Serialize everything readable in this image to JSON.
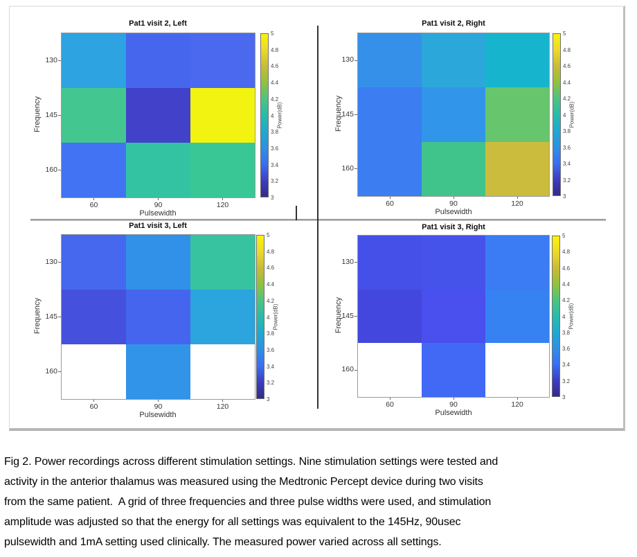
{
  "figure": {
    "caption_lines": [
      "Fig 2. Power recordings across different stimulation settings. Nine stimulation settings were tested and",
      "activity in the anterior thalamus was measured using the Medtronic Percept device during two visits",
      "from the same patient.  A grid of three frequencies and three pulse widths were used, and stimulation",
      "amplitude was adjusted so that the energy for all settings was equivalent to the 145Hz, 90usec",
      "pulsewidth and 1mA setting used clinically. The measured power varied across all settings."
    ]
  },
  "chart_data": {
    "type": "heatmap",
    "x_categories": [
      "60",
      "90",
      "120"
    ],
    "y_categories": [
      "130",
      "145",
      "160"
    ],
    "xlabel": "Pulsewidth",
    "ylabel": "Frequency",
    "colorbar": {
      "label": "Power(dB)",
      "min": 3,
      "max": 5,
      "tick_labels": [
        "5",
        "4.8",
        "4.6",
        "4.4",
        "4.2",
        "4",
        "3.8",
        "3.6",
        "3.4",
        "3.2",
        "3"
      ],
      "gradient_stops_bottom_to_top": [
        "#352a87",
        "#3d3ec1",
        "#3a6ff2",
        "#2e90e5",
        "#1fa9d1",
        "#27bcab",
        "#4cc481",
        "#90c13f",
        "#c9bb35",
        "#ecd928",
        "#f9f30b"
      ]
    },
    "panels": [
      {
        "title": "Pat1 visit 2, Left",
        "values": [
          [
            3.65,
            3.3,
            3.3
          ],
          [
            4.1,
            3.1,
            5.0
          ],
          [
            3.4,
            3.95,
            4.0
          ]
        ],
        "colors": [
          [
            "#2ea3e2",
            "#4766ee",
            "#4a69ef"
          ],
          [
            "#44c690",
            "#4142c9",
            "#f2f310"
          ],
          [
            "#4273f2",
            "#33c3a3",
            "#39c795"
          ]
        ]
      },
      {
        "title": "Pat1 visit 2, Right",
        "values": [
          [
            3.55,
            3.7,
            3.8
          ],
          [
            3.45,
            3.55,
            4.25
          ],
          [
            3.45,
            4.05,
            4.55
          ]
        ],
        "colors": [
          [
            "#3590ea",
            "#2ca7da",
            "#17b5cd"
          ],
          [
            "#3c7df2",
            "#3195e9",
            "#67c56e"
          ],
          [
            "#3c7df2",
            "#41c48b",
            "#ccbc3d"
          ]
        ]
      },
      {
        "title": "Pat1 visit 3, Left",
        "values": [
          [
            3.3,
            3.55,
            3.95
          ],
          [
            3.15,
            3.3,
            3.65
          ],
          [
            null,
            3.55,
            null
          ]
        ],
        "colors": [
          [
            "#4568ee",
            "#3191e8",
            "#37c3a0"
          ],
          [
            "#4551dc",
            "#4565ee",
            "#2ca4dd"
          ],
          [
            null,
            "#3294e9",
            null
          ]
        ]
      },
      {
        "title": "Pat1 visit 3, Right",
        "values": [
          [
            3.2,
            3.2,
            3.45
          ],
          [
            3.1,
            3.2,
            3.5
          ],
          [
            null,
            3.4,
            null
          ]
        ],
        "colors": [
          [
            "#4450e8",
            "#4553ea",
            "#3b7cf4"
          ],
          [
            "#4347dd",
            "#4950ee",
            "#3682f2"
          ],
          [
            null,
            "#4169f5",
            null
          ]
        ]
      }
    ]
  }
}
